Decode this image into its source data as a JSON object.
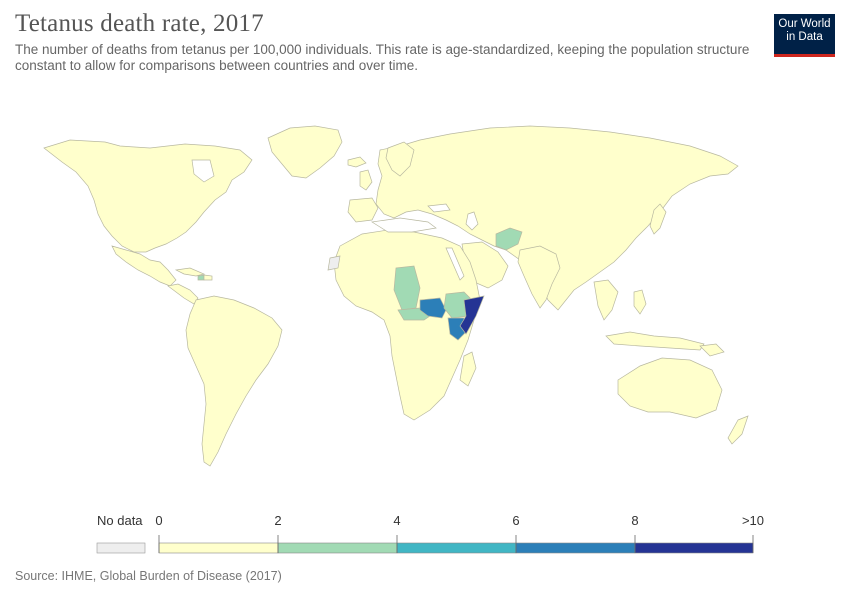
{
  "header": {
    "title": "Tetanus death rate, 2017",
    "subtitle": "The number of deaths from tetanus per 100,000 individuals. This rate is age-standardized, keeping the population structure constant to allow for comparisons between countries and over time."
  },
  "logo": {
    "line1": "Our World",
    "line2": "in Data"
  },
  "legend": {
    "no_data_label": "No data",
    "no_data_color": "#eeeeee",
    "ticks": [
      "0",
      "2",
      "4",
      "6",
      "8",
      ">10"
    ],
    "colors": [
      "#ffffcc",
      "#a1dab4",
      "#41b6c4",
      "#2c7fb8",
      "#253494"
    ]
  },
  "map_colors": {
    "land": "#ffffcc",
    "border": "#b8b8a0",
    "no_data": "#eeeeee",
    "bin_2_4": "#a1dab4",
    "bin_4_6": "#41b6c4",
    "bin_6_8": "#2c7fb8",
    "bin_10_plus": "#253494"
  },
  "footer": {
    "source": "Source: IHME, Global Burden of Disease (2017)"
  }
}
